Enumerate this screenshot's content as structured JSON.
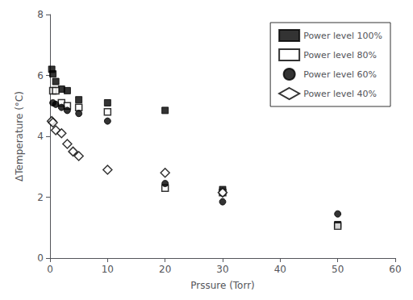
{
  "chart_data": {
    "type": "scatter",
    "xlabel": "Prssure (Torr)",
    "ylabel": "ΔTemperature (°C)",
    "xlim": [
      0,
      60
    ],
    "ylim": [
      0,
      8
    ],
    "xticks": [
      0,
      10,
      20,
      30,
      40,
      50,
      60
    ],
    "yticks": [
      0,
      2,
      4,
      6,
      8
    ],
    "grid": false,
    "legend": "upper right",
    "series": [
      {
        "name": "Power level 100%",
        "color": "black",
        "marker": "square",
        "x": [
          0.3,
          0.5,
          1.0,
          2.0,
          3.0,
          5.0,
          10.0,
          20.0,
          30.0,
          50.0
        ],
        "values": [
          6.2,
          6.05,
          5.8,
          5.55,
          5.5,
          5.2,
          5.1,
          4.85,
          2.25,
          1.1
        ]
      },
      {
        "name": "Power level 80%",
        "color": "black",
        "marker": "square-open",
        "x": [
          0.5,
          1.0,
          2.0,
          3.0,
          5.0,
          10.0,
          20.0,
          30.0,
          50.0
        ],
        "values": [
          5.5,
          5.5,
          5.1,
          5.0,
          4.95,
          4.8,
          2.3,
          2.15,
          1.05
        ]
      },
      {
        "name": "Power level 60%",
        "color": "black",
        "marker": "circle",
        "x": [
          0.5,
          1.0,
          2.0,
          3.0,
          5.0,
          10.0,
          20.0,
          30.0,
          50.0
        ],
        "values": [
          5.1,
          5.05,
          4.95,
          4.85,
          4.75,
          4.5,
          2.45,
          1.85,
          1.45
        ]
      },
      {
        "name": "Power level 40%",
        "color": "black",
        "marker": "diamond-open",
        "x": [
          0.3,
          0.5,
          1.0,
          2.0,
          3.0,
          4.0,
          5.0,
          10.0,
          20.0,
          30.0
        ],
        "values": [
          4.5,
          4.45,
          4.2,
          4.1,
          3.75,
          3.5,
          3.35,
          2.9,
          2.8,
          2.15
        ]
      }
    ]
  }
}
